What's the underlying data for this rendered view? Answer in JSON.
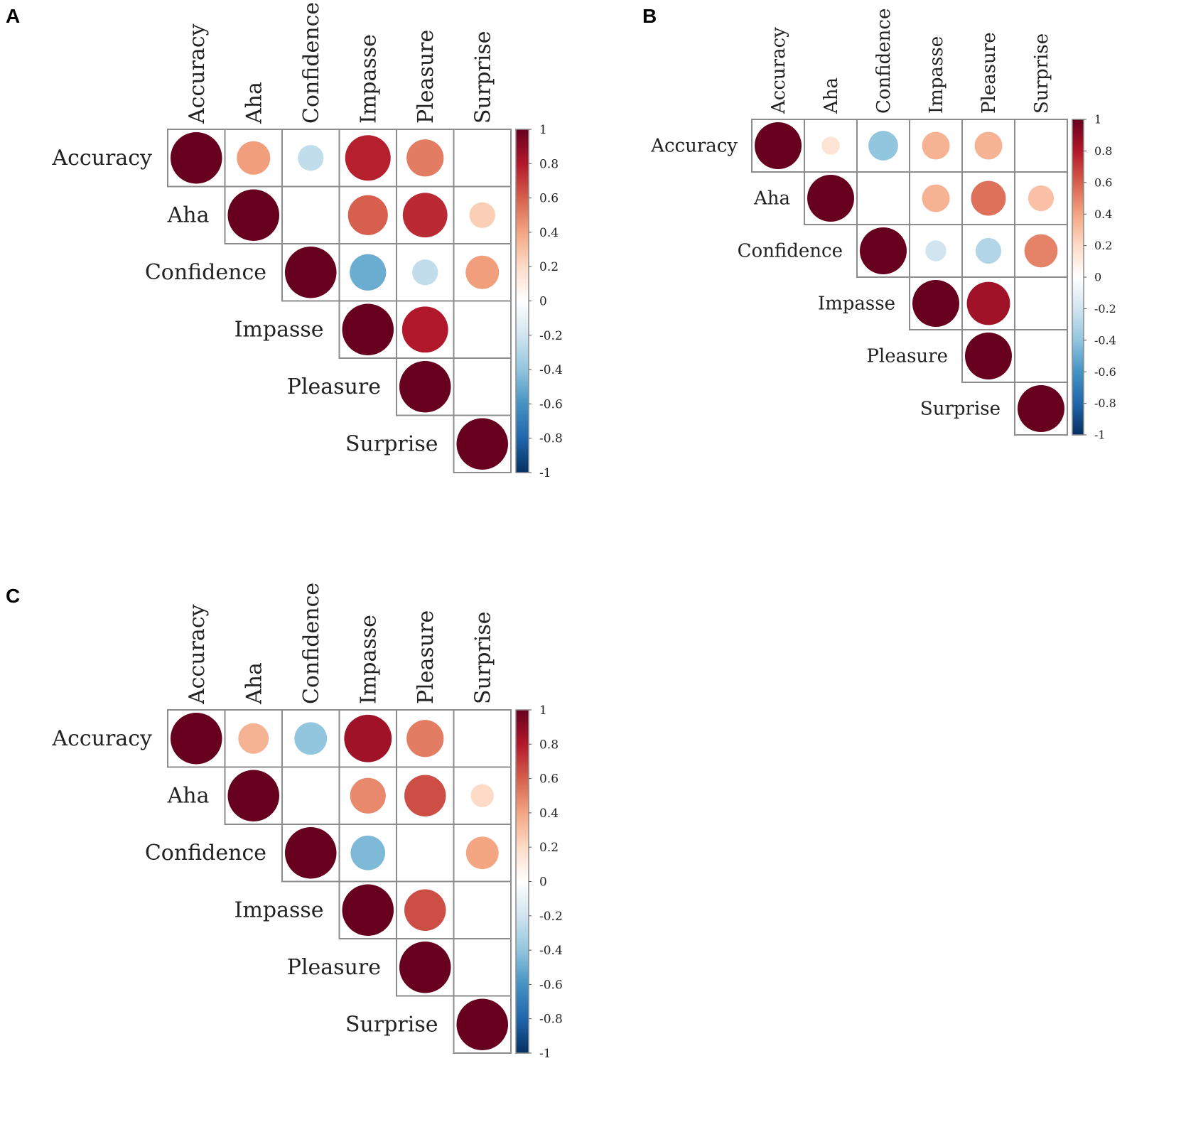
{
  "figure": {
    "panel_letters": [
      "A",
      "B",
      "C"
    ]
  },
  "colors": {
    "cell_border": "#8c8c8c",
    "scale": [
      "#67001f",
      "#b2182b",
      "#d6604d",
      "#f4a582",
      "#fddbc7",
      "#ffffff",
      "#d1e5f0",
      "#92c5de",
      "#4393c3",
      "#2166ac",
      "#053061"
    ]
  },
  "chart_data": [
    {
      "panel": "A",
      "type": "heatmap",
      "subtype": "correlation-circles-upper-triangle",
      "variables": [
        "Accuracy",
        "Aha",
        "Confidence",
        "Impasse",
        "Pleasure",
        "Surprise"
      ],
      "colorbar": {
        "range": [
          -1,
          1
        ],
        "ticks": [
          "1",
          "0.8",
          "0.6",
          "0.4",
          "0.2",
          "0",
          "-0.2",
          "-0.4",
          "-0.6",
          "-0.8",
          "-1"
        ]
      },
      "matrix": [
        [
          1,
          0.42,
          -0.25,
          0.78,
          0.52,
          null
        ],
        [
          null,
          1,
          null,
          0.6,
          0.75,
          0.25
        ],
        [
          null,
          null,
          1,
          -0.5,
          -0.25,
          0.42
        ],
        [
          null,
          null,
          null,
          1,
          0.8,
          null
        ],
        [
          null,
          null,
          null,
          null,
          1,
          null
        ],
        [
          null,
          null,
          null,
          null,
          null,
          1
        ]
      ]
    },
    {
      "panel": "B",
      "type": "heatmap",
      "subtype": "correlation-circles-upper-triangle",
      "variables": [
        "Accuracy",
        "Aha",
        "Confidence",
        "Impasse",
        "Pleasure",
        "Surprise"
      ],
      "colorbar": {
        "range": [
          -1,
          1
        ],
        "ticks": [
          "1",
          "0.8",
          "0.6",
          "0.4",
          "0.2",
          "0",
          "-0.2",
          "-0.4",
          "-0.6",
          "-0.8",
          "-1"
        ]
      },
      "matrix": [
        [
          1,
          0.15,
          -0.4,
          0.35,
          0.35,
          null
        ],
        [
          null,
          1,
          null,
          0.35,
          0.55,
          0.3
        ],
        [
          null,
          null,
          1,
          -0.2,
          -0.3,
          0.5
        ],
        [
          null,
          null,
          null,
          1,
          0.85,
          null
        ],
        [
          null,
          null,
          null,
          null,
          1,
          null
        ],
        [
          null,
          null,
          null,
          null,
          null,
          1
        ]
      ]
    },
    {
      "panel": "C",
      "type": "heatmap",
      "subtype": "correlation-circles-upper-triangle",
      "variables": [
        "Accuracy",
        "Aha",
        "Confidence",
        "Impasse",
        "Pleasure",
        "Surprise"
      ],
      "colorbar": {
        "range": [
          -1,
          1
        ],
        "ticks": [
          "1",
          "0.8",
          "0.6",
          "0.4",
          "0.2",
          "0",
          "-0.2",
          "-0.4",
          "-0.6",
          "-0.8",
          "-1"
        ]
      },
      "matrix": [
        [
          1,
          0.35,
          -0.4,
          0.85,
          0.52,
          null
        ],
        [
          null,
          1,
          null,
          0.48,
          0.65,
          0.2
        ],
        [
          null,
          null,
          1,
          -0.45,
          null,
          0.4
        ],
        [
          null,
          null,
          null,
          1,
          0.65,
          null
        ],
        [
          null,
          null,
          null,
          null,
          1,
          null
        ],
        [
          null,
          null,
          null,
          null,
          null,
          1
        ]
      ]
    }
  ]
}
